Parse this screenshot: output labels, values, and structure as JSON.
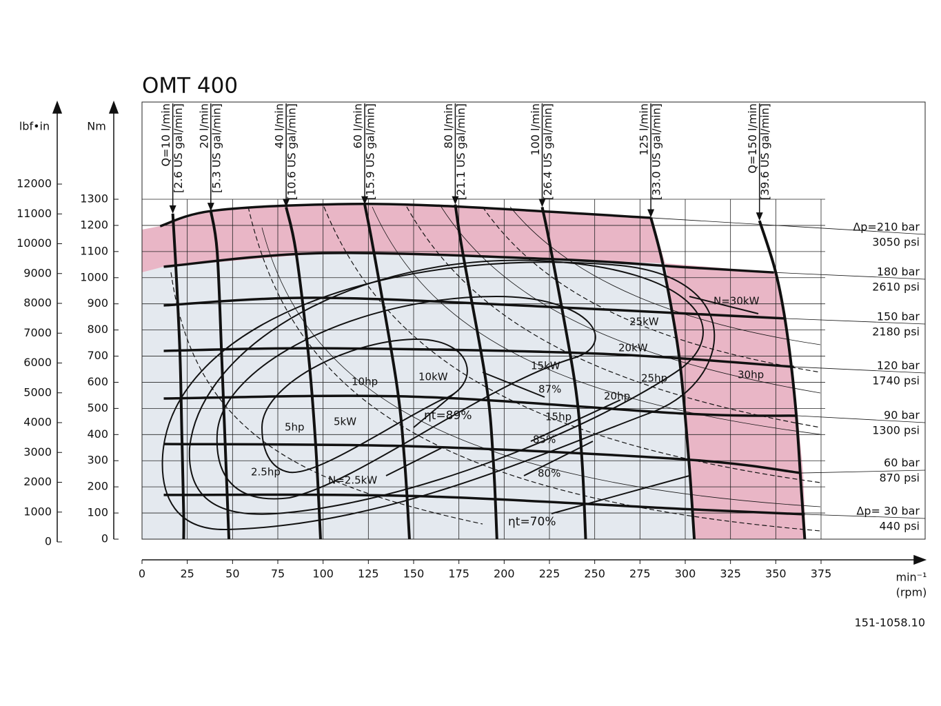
{
  "chart_data": {
    "type": "performance-map",
    "title": "OMT 400",
    "ylabel": "Nm",
    "y2label": "lbf•in",
    "xlabel": "min⁻¹",
    "xlabel_unit": "(rpm)",
    "code": "151-1058.10",
    "xlim": [
      0,
      375
    ],
    "xticks": [
      0,
      25,
      50,
      75,
      100,
      125,
      150,
      175,
      200,
      225,
      250,
      275,
      300,
      325,
      350,
      375
    ],
    "ylim": [
      0,
      1300
    ],
    "yticks": [
      0,
      100,
      200,
      300,
      400,
      500,
      600,
      700,
      800,
      900,
      1000,
      1100,
      1200,
      1300
    ],
    "y2lim": [
      0,
      12000
    ],
    "y2ticks": [
      0,
      1000,
      2000,
      3000,
      4000,
      5000,
      6000,
      7000,
      8000,
      9000,
      10000,
      11000,
      12000
    ],
    "grid": true,
    "flow_lines": [
      {
        "name": "Q=10 l/min",
        "us": "[2.6 US gal/min]",
        "x": [
          17,
          19,
          21,
          22,
          23,
          23
        ],
        "y": [
          1245,
          1000,
          700,
          400,
          100,
          0
        ]
      },
      {
        "name": "20 l/min",
        "us": "[5.3 US gal/min]",
        "x": [
          38,
          41.5,
          44,
          46,
          48
        ],
        "y": [
          1255,
          1100,
          700,
          350,
          0
        ]
      },
      {
        "name": "40 l/min",
        "us": "[10.6 US gal/min]",
        "x": [
          79.6,
          85,
          92,
          96,
          98.6
        ],
        "y": [
          1270,
          1100,
          700,
          350,
          0
        ]
      },
      {
        "name": "60 l/min",
        "us": "[15.9 US gal/min]",
        "x": [
          123,
          128,
          140.5,
          145,
          147.7
        ],
        "y": [
          1280,
          1100,
          600,
          300,
          0
        ]
      },
      {
        "name": "80 l/min",
        "us": "[21.1 US gal/min]",
        "x": [
          173,
          177,
          190,
          194,
          196
        ],
        "y": [
          1280,
          1100,
          600,
          300,
          0
        ]
      },
      {
        "name": "100 l/min",
        "us": "[26.4 US gal/min]",
        "x": [
          221,
          226,
          239,
          243,
          245
        ],
        "y": [
          1270,
          1100,
          600,
          300,
          0
        ]
      },
      {
        "name": "125 l/min",
        "us": "[33.0 US gal/min]",
        "x": [
          281,
          288,
          296.6,
          302,
          305
        ],
        "y": [
          1230,
          1040,
          700,
          300,
          0
        ]
      },
      {
        "name": "Q=150 l/min",
        "us": "[39.6 US gal/min]",
        "x": [
          341,
          350,
          356,
          361,
          364,
          366
        ],
        "y": [
          1218,
          1020,
          800,
          500,
          200,
          0
        ]
      }
    ],
    "pressure_lines": [
      {
        "name": "Δp=210 bar",
        "psi": "3050 psi",
        "x": [
          10,
          38,
          100,
          165,
          281
        ],
        "y": [
          1197,
          1255,
          1280,
          1275,
          1229
        ]
      },
      {
        "name": "180 bar",
        "psi": "2610 psi",
        "x": [
          12,
          100,
          230,
          300,
          349
        ],
        "y": [
          1042,
          1094,
          1070,
          1040,
          1020
        ]
      },
      {
        "name": "150 bar",
        "psi": "2180 psi",
        "x": [
          12,
          100,
          250,
          355
        ],
        "y": [
          894,
          923,
          880,
          844
        ]
      },
      {
        "name": "120 bar",
        "psi": "1740 psi",
        "x": [
          12,
          100,
          250,
          360
        ],
        "y": [
          720,
          730,
          710,
          659
        ]
      },
      {
        "name": "90 bar",
        "psi": "1300 psi",
        "x": [
          12,
          150,
          300,
          362
        ],
        "y": [
          538,
          545,
          480,
          472
        ]
      },
      {
        "name": "60 bar",
        "psi": "870 psi",
        "x": [
          12,
          150,
          300,
          364
        ],
        "y": [
          364,
          355,
          305,
          253
        ]
      },
      {
        "name": "Δp= 30 bar",
        "psi": "440 psi",
        "x": [
          12,
          150,
          300,
          366
        ],
        "y": [
          169,
          165,
          115,
          95
        ]
      }
    ],
    "annotations": [
      "N=30kW",
      "25kW",
      "20kW",
      "15kW",
      "10kW",
      "5kW",
      "N=2.5kW",
      "30hp",
      "25hp",
      "20hp",
      "15hp",
      "10hp",
      "5hp",
      "2.5hp",
      "87%",
      "85%",
      "80%",
      "ηt=89%",
      "ηt=70%"
    ]
  }
}
